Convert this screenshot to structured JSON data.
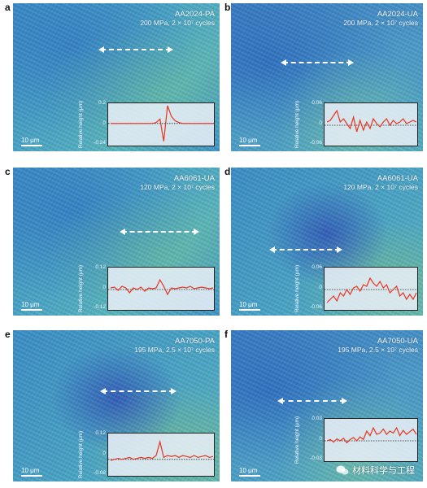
{
  "panels": [
    {
      "letter": "a",
      "alloy": "AA2024-PA",
      "condition": "200 MPa, 2 × 10⁷ cycles",
      "scale": "10 μm",
      "yaxis": "Relative height (μm)",
      "yticks": [
        "0.2",
        "0",
        "-0.24"
      ],
      "profile": [
        0,
        0,
        0,
        0,
        0,
        0,
        0,
        0,
        0,
        0,
        0,
        0,
        0.01,
        0.05,
        -0.2,
        0.2,
        0.08,
        0.03,
        0.01,
        0,
        0,
        0,
        0,
        0,
        0,
        0,
        0,
        0
      ]
    },
    {
      "letter": "b",
      "alloy": "AA2024-UA",
      "condition": "200 MPa, 2 × 10⁷ cycles",
      "scale": "10 μm",
      "yaxis": "Relative height (μm)",
      "yticks": [
        "0.06",
        "0",
        "-0.06"
      ],
      "profile": [
        0.01,
        0.015,
        0.03,
        0.045,
        0.01,
        0.02,
        0.005,
        -0.01,
        0.025,
        -0.02,
        0.015,
        -0.015,
        0.01,
        -0.01,
        0.02,
        0.005,
        -0.005,
        0.01,
        0.02,
        0,
        0.015,
        0.005,
        0.01,
        0.02,
        0.005,
        0.01,
        0.015,
        0.01
      ]
    },
    {
      "letter": "c",
      "alloy": "AA6061-UA",
      "condition": "120 MPa, 2 × 10⁷ cycles",
      "scale": "10 μm",
      "yaxis": "Relative height (μm)",
      "yticks": [
        "0.12",
        "0",
        "-0.12"
      ],
      "profile": [
        0.01,
        0.015,
        -0.005,
        0.02,
        0.01,
        -0.02,
        0.01,
        0,
        0.015,
        -0.01,
        0.01,
        0.005,
        0.01,
        0.06,
        0.02,
        -0.03,
        0.01,
        0.005,
        0.01,
        0.015,
        0.01,
        0.02,
        0.005,
        0.01,
        0.015,
        0.01,
        0.005,
        0.01
      ]
    },
    {
      "letter": "d",
      "alloy": "AA6061-UA",
      "condition": "120 MPa, 2 × 10⁷ cycles",
      "scale": "10 μm",
      "yaxis": "Relative height (μm)",
      "yticks": [
        "0.06",
        "0",
        "-0.06"
      ],
      "profile": [
        -0.04,
        -0.03,
        -0.02,
        -0.035,
        -0.01,
        -0.02,
        0,
        -0.015,
        0.005,
        0.01,
        -0.005,
        0.015,
        0.01,
        0.035,
        0.02,
        0.01,
        0.025,
        0.005,
        0.015,
        -0.01,
        0,
        0.01,
        -0.02,
        -0.01,
        -0.03,
        -0.015,
        -0.03,
        -0.01
      ]
    },
    {
      "letter": "e",
      "alloy": "AA7050-PA",
      "condition": "195 MPa, 2.5 × 10⁷ cycles",
      "scale": "10 μm",
      "yaxis": "Relative height (μm)",
      "yticks": [
        "0.12",
        "0",
        "-0.08"
      ],
      "profile": [
        -0.005,
        0,
        0.005,
        0,
        0.005,
        0.01,
        0,
        0.005,
        0.01,
        0.005,
        0.01,
        0.005,
        0.02,
        0.09,
        0.01,
        0.02,
        0.015,
        0.02,
        0.01,
        0.02,
        0.015,
        0.01,
        0.02,
        0.01,
        0.015,
        0.02,
        0.01,
        0.015
      ]
    },
    {
      "letter": "f",
      "alloy": "AA7050-UA",
      "condition": "195 MPa, 2.5 × 10⁷ cycles",
      "scale": "10 μm",
      "yaxis": "Relative height (μm)",
      "yticks": [
        "0.03",
        "0",
        "-0.03"
      ],
      "profile": [
        0,
        0.002,
        -0.002,
        0.003,
        0,
        0.004,
        -0.003,
        0.002,
        0.005,
        0,
        0.006,
        0.002,
        0.015,
        0.008,
        0.02,
        0.01,
        0.012,
        0.018,
        0.01,
        0.015,
        0.012,
        0.02,
        0.008,
        0.016,
        0.01,
        0.014,
        0.018,
        0.01
      ]
    }
  ],
  "watermark": "材料科学与工程"
}
